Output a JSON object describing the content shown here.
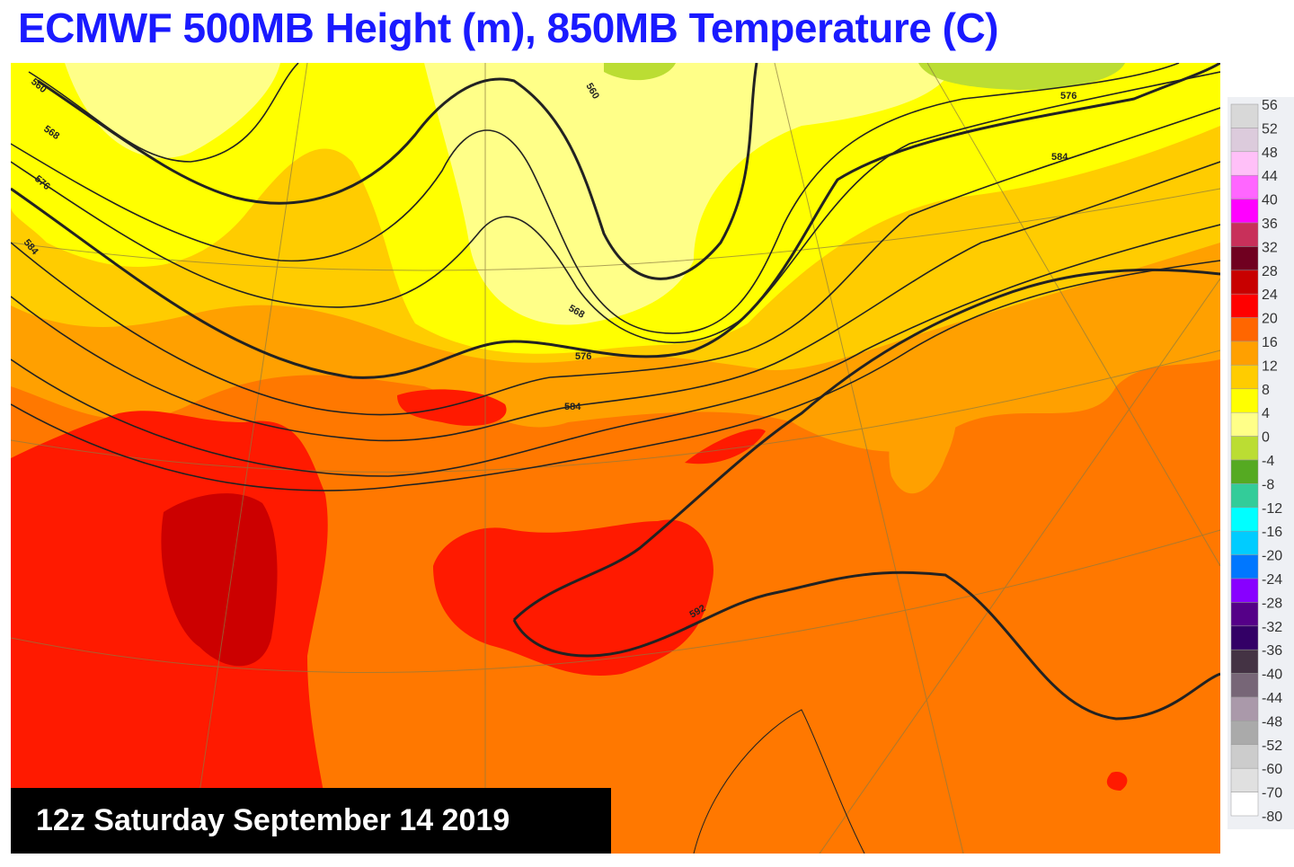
{
  "title": "ECMWF 500MB Height (m), 850MB Temperature (C)",
  "valid_time": "12z Saturday September 14 2019",
  "colorbar": {
    "labels": [
      "56",
      "52",
      "48",
      "44",
      "40",
      "36",
      "32",
      "28",
      "24",
      "20",
      "16",
      "12",
      "8",
      "4",
      "0",
      "-4",
      "-8",
      "-12",
      "-16",
      "-20",
      "-24",
      "-28",
      "-32",
      "-36",
      "-40",
      "-44",
      "-48",
      "-52",
      "-60",
      "-70",
      "-80"
    ],
    "colors": [
      "#d8d8d8",
      "#dccbdc",
      "#ffc0f8",
      "#ff66ff",
      "#ff00ff",
      "#c8305a",
      "#700020",
      "#c80000",
      "#ff0000",
      "#ff6600",
      "#ffa000",
      "#ffcc00",
      "#ffff00",
      "#ffff88",
      "#bbdd33",
      "#55aa22",
      "#33cc99",
      "#00ffff",
      "#00ccff",
      "#0077ff",
      "#8800ff",
      "#550088",
      "#330066",
      "#443344",
      "#776677",
      "#aa99aa",
      "#aaaaaa",
      "#cccccc",
      "#e0e0e0",
      "#ffffff"
    ]
  },
  "contour_labels": [
    "560",
    "568",
    "576",
    "584",
    "560",
    "568",
    "576",
    "584",
    "576",
    "584",
    "592"
  ],
  "colors": {
    "title": "#1a1aff",
    "field_warm": "#ff7800",
    "field_hot": "#ff1a00",
    "field_very_hot": "#cc0000",
    "field_mild": "#ffa000",
    "field_cool": "#ffcc00",
    "field_cold": "#ffff00",
    "field_coldest": "#ffff88",
    "field_green": "#bbdd33"
  }
}
